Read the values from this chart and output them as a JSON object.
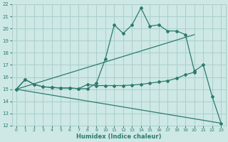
{
  "xlabel": "Humidex (Indice chaleur)",
  "xlim": [
    -0.5,
    23.5
  ],
  "ylim": [
    12,
    22
  ],
  "xticks": [
    0,
    1,
    2,
    3,
    4,
    5,
    6,
    7,
    8,
    9,
    10,
    11,
    12,
    13,
    14,
    15,
    16,
    17,
    18,
    19,
    20,
    21,
    22,
    23
  ],
  "yticks": [
    12,
    13,
    14,
    15,
    16,
    17,
    18,
    19,
    20,
    21,
    22
  ],
  "background_color": "#cde8e5",
  "grid_color": "#aacfcc",
  "line_color": "#2d7b6e",
  "lines": [
    {
      "x": [
        0,
        1,
        2,
        3,
        4,
        5,
        6,
        7,
        8,
        9,
        10,
        11,
        12,
        13,
        14,
        15,
        16,
        17,
        18,
        19,
        20,
        21,
        22,
        23
      ],
      "y": [
        15.0,
        15.8,
        15.4,
        15.2,
        15.15,
        15.1,
        15.1,
        15.05,
        15.05,
        15.5,
        17.5,
        20.3,
        19.6,
        20.3,
        21.7,
        20.2,
        20.3,
        19.8,
        19.8,
        19.5,
        16.5,
        17.0,
        14.4,
        12.2
      ],
      "has_markers": true
    },
    {
      "x": [
        0,
        1,
        2,
        3,
        4,
        5,
        6,
        7,
        8,
        9,
        10,
        11,
        12,
        13,
        14,
        15,
        16,
        17,
        18,
        19,
        20
      ],
      "y": [
        15.0,
        15.8,
        15.4,
        15.2,
        15.15,
        15.1,
        15.1,
        15.05,
        15.4,
        15.3,
        15.3,
        15.3,
        15.3,
        15.35,
        15.4,
        15.5,
        15.6,
        15.7,
        15.9,
        16.2,
        16.4
      ],
      "has_markers": true
    },
    {
      "x": [
        0,
        20
      ],
      "y": [
        15.0,
        19.5
      ],
      "has_markers": false
    },
    {
      "x": [
        0,
        23
      ],
      "y": [
        15.0,
        12.2
      ],
      "has_markers": false
    }
  ]
}
